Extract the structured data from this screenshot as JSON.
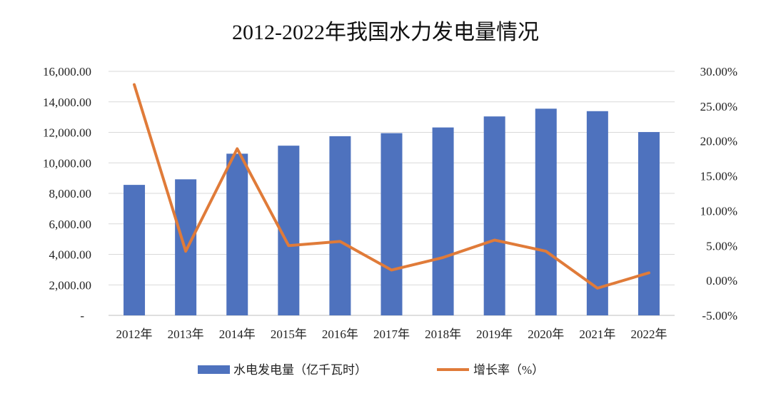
{
  "chart_data": {
    "type": "bar+line",
    "title": "2012-2022年我国水力发电量情况",
    "categories": [
      "2012年",
      "2013年",
      "2014年",
      "2015年",
      "2016年",
      "2017年",
      "2018年",
      "2019年",
      "2020年",
      "2021年",
      "2022年"
    ],
    "series": [
      {
        "name": "水电发电量（亿千瓦时）",
        "type": "bar",
        "axis": "left",
        "color": "#4e72be",
        "values": [
          8556,
          8921,
          10601,
          11127,
          11748,
          11947,
          12321,
          13044,
          13552,
          13390,
          12020
        ]
      },
      {
        "name": "增长率（%）",
        "type": "line",
        "axis": "right",
        "color": "#e07b39",
        "values": [
          28.1,
          4.2,
          18.9,
          5.0,
          5.6,
          1.5,
          3.3,
          5.8,
          4.2,
          -1.1,
          1.1
        ]
      }
    ],
    "left_axis": {
      "ylim": [
        0,
        16000
      ],
      "ticks": [
        "-",
        "2,000.00",
        "4,000.00",
        "6,000.00",
        "8,000.00",
        "10,000.00",
        "12,000.00",
        "14,000.00",
        "16,000.00"
      ]
    },
    "right_axis": {
      "ylim": [
        -5,
        30
      ],
      "ticks": [
        "-5.00%",
        "0.00%",
        "5.00%",
        "10.00%",
        "15.00%",
        "20.00%",
        "25.00%",
        "30.00%"
      ]
    },
    "grid": true,
    "legend_position": "bottom"
  }
}
